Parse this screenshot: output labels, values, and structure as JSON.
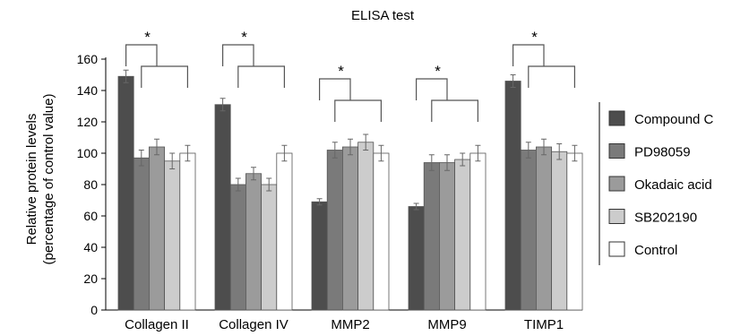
{
  "chart_data": {
    "type": "bar",
    "title": "ELISA test",
    "xlabel": "",
    "ylabel_line1": "Relative protein levels",
    "ylabel_line2": "(percentage of control  value)",
    "ylim": [
      0,
      160
    ],
    "yticks": [
      "0",
      "20",
      "40",
      "60",
      "80",
      "100",
      "120",
      "140",
      "160"
    ],
    "grid": false,
    "legend_position": "right",
    "categories": [
      "Collagen II",
      "Collagen IV",
      "MMP2",
      "MMP9",
      "TIMP1"
    ],
    "series": [
      {
        "name": "Compound C",
        "color": "#4d4d4d",
        "values": [
          149,
          131,
          69,
          66,
          146
        ],
        "errors": [
          4,
          4,
          2,
          2,
          4
        ]
      },
      {
        "name": "PD98059",
        "color": "#7a7a7a",
        "values": [
          97,
          80,
          102,
          94,
          102
        ],
        "errors": [
          5,
          4,
          5,
          5,
          5
        ]
      },
      {
        "name": "Okadaic acid",
        "color": "#9b9b9b",
        "values": [
          104,
          87,
          104,
          94,
          104
        ],
        "errors": [
          5,
          4,
          5,
          5,
          5
        ]
      },
      {
        "name": "SB202190",
        "color": "#cccccc",
        "values": [
          95,
          80,
          107,
          96,
          101
        ],
        "errors": [
          5,
          4,
          5,
          4,
          5
        ]
      },
      {
        "name": "Control",
        "color": "#ffffff",
        "values": [
          100,
          100,
          100,
          100,
          100
        ],
        "errors": [
          5,
          5,
          5,
          5,
          5
        ]
      }
    ],
    "annotations": [
      {
        "category": "Collagen II",
        "label": "*"
      },
      {
        "category": "Collagen IV",
        "label": "*"
      },
      {
        "category": "MMP2",
        "label": "*"
      },
      {
        "category": "MMP9",
        "label": "*"
      },
      {
        "category": "TIMP1",
        "label": "*"
      }
    ]
  }
}
